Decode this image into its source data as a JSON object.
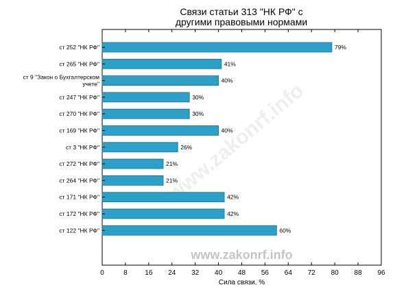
{
  "chart_data": {
    "type": "bar",
    "orientation": "horizontal",
    "title": [
      "Связи статьи 313 \"НК РФ\" с",
      "другими правовыми нормами"
    ],
    "xlabel": "Сила связи, %",
    "ylabel": "",
    "xlim": [
      0,
      96
    ],
    "xticks": [
      0,
      8,
      16,
      24,
      32,
      40,
      48,
      56,
      64,
      72,
      80,
      88,
      96
    ],
    "bar_color": "#2ca0c8",
    "bar_edge_color": "#1a6f8e",
    "grid": false,
    "categories": [
      [
        "ст 252 \"НК РФ\""
      ],
      [
        "ст 265 \"НК РФ\""
      ],
      [
        "ст 9 \"Закон о Бухгалтерском",
        "учете\""
      ],
      [
        "ст 247 \"НК РФ\""
      ],
      [
        "ст 270 \"НК РФ\""
      ],
      [
        "ст 169 \"НК РФ\""
      ],
      [
        "ст 3 \"НК РФ\""
      ],
      [
        "ст 272 \"НК РФ\""
      ],
      [
        "ст 264 \"НК РФ\""
      ],
      [
        "ст 171 \"НК РФ\""
      ],
      [
        "ст 172 \"НК РФ\""
      ],
      [
        "ст 122 \"НК РФ\""
      ]
    ],
    "values": [
      79,
      41,
      40,
      30,
      30,
      40,
      26,
      21,
      21,
      42,
      42,
      60
    ],
    "value_labels": [
      "79%",
      "41%",
      "40%",
      "30%",
      "30%",
      "40%",
      "26%",
      "21%",
      "21%",
      "42%",
      "42%",
      "60%"
    ]
  },
  "watermark": "www.zakonrf.info"
}
